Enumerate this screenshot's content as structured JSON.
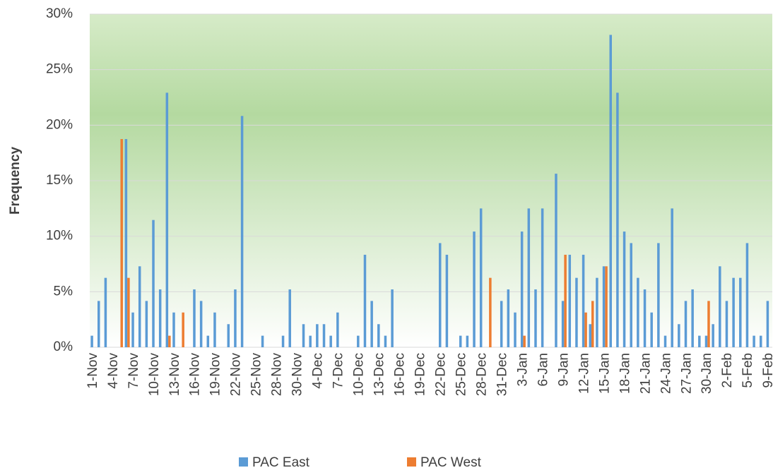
{
  "chart_data": {
    "type": "bar",
    "y_label": "Frequency",
    "categories": [
      "1-Nov",
      null,
      null,
      "4-Nov",
      null,
      null,
      "7-Nov",
      null,
      null,
      "10-Nov",
      null,
      null,
      "13-Nov",
      null,
      null,
      "16-Nov",
      null,
      null,
      "19-Nov",
      null,
      null,
      "22-Nov",
      null,
      null,
      "25-Nov",
      null,
      null,
      "28-Nov",
      null,
      null,
      "30-Nov",
      null,
      null,
      "4-Dec",
      null,
      null,
      "7-Dec",
      null,
      null,
      "10-Dec",
      null,
      null,
      "13-Dec",
      null,
      null,
      "16-Dec",
      null,
      null,
      "19-Dec",
      null,
      null,
      "22-Dec",
      null,
      null,
      "25-Dec",
      null,
      null,
      "28-Dec",
      null,
      null,
      "31-Dec",
      null,
      null,
      "3-Jan",
      null,
      null,
      "6-Jan",
      null,
      null,
      "9-Jan",
      null,
      null,
      "12-Jan",
      null,
      null,
      "15-Jan",
      null,
      null,
      "18-Jan",
      null,
      null,
      "21-Jan",
      null,
      null,
      "24-Jan",
      null,
      null,
      "27-Jan",
      null,
      null,
      "30-Jan",
      null,
      null,
      "2-Feb",
      null,
      null,
      "5-Feb",
      null,
      null,
      "9-Feb"
    ],
    "series": [
      {
        "name": "PAC East",
        "color": "#5b9bd5",
        "values": [
          1.04,
          4.17,
          6.25,
          0,
          0,
          18.75,
          3.13,
          7.29,
          4.17,
          11.46,
          5.21,
          22.92,
          3.13,
          0,
          0,
          5.21,
          4.17,
          1.04,
          3.13,
          0,
          2.08,
          5.21,
          20.83,
          0,
          0,
          1.04,
          0,
          0,
          1.04,
          5.21,
          0,
          2.08,
          1.04,
          2.08,
          2.08,
          1.04,
          3.13,
          0,
          0,
          1.04,
          8.33,
          4.17,
          2.08,
          1.04,
          5.21,
          0,
          0,
          0,
          0,
          0,
          0,
          9.38,
          8.33,
          0,
          1.04,
          1.04,
          10.42,
          12.5,
          0,
          0,
          4.17,
          5.21,
          3.13,
          10.42,
          12.5,
          5.21,
          12.5,
          0,
          15.63,
          4.17,
          8.33,
          6.25,
          8.33,
          2.08,
          6.25,
          7.29,
          28.13,
          22.92,
          10.42,
          9.38,
          6.25,
          5.21,
          3.13,
          9.38,
          1.04,
          12.5,
          2.08,
          4.17,
          5.21,
          1.04,
          1.04,
          2.08,
          7.29,
          4.17,
          6.25,
          6.25,
          9.38,
          1.04,
          1.04,
          4.17
        ]
      },
      {
        "name": "PAC West",
        "color": "#ed7d31",
        "values": [
          0,
          0,
          0,
          0,
          18.75,
          6.25,
          0,
          0,
          0,
          0,
          0,
          1.04,
          0,
          3.13,
          0,
          0,
          0,
          0,
          0,
          0,
          0,
          0,
          0,
          0,
          0,
          0,
          0,
          0,
          0,
          0,
          0,
          0,
          0,
          0,
          0,
          0,
          0,
          0,
          0,
          0,
          0,
          0,
          0,
          0,
          0,
          0,
          0,
          0,
          0,
          0,
          0,
          0,
          0,
          0,
          0,
          0,
          0,
          0,
          6.25,
          0,
          0,
          0,
          0,
          1.04,
          0,
          0,
          0,
          0,
          0,
          8.33,
          0,
          0,
          3.13,
          4.17,
          0,
          7.29,
          0,
          0,
          0,
          0,
          0,
          0,
          0,
          0,
          0,
          0,
          0,
          0,
          0,
          0,
          4.17,
          0,
          0,
          0,
          0,
          0,
          0,
          0,
          0,
          0
        ]
      }
    ],
    "ylim": [
      0,
      30
    ],
    "yticks": [
      {
        "value": 0,
        "label": "0%"
      },
      {
        "value": 5,
        "label": "5%"
      },
      {
        "value": 10,
        "label": "10%"
      },
      {
        "value": 15,
        "label": "15%"
      },
      {
        "value": 20,
        "label": "20%"
      },
      {
        "value": 25,
        "label": "25%"
      },
      {
        "value": 30,
        "label": "30%"
      }
    ],
    "grid": true
  }
}
